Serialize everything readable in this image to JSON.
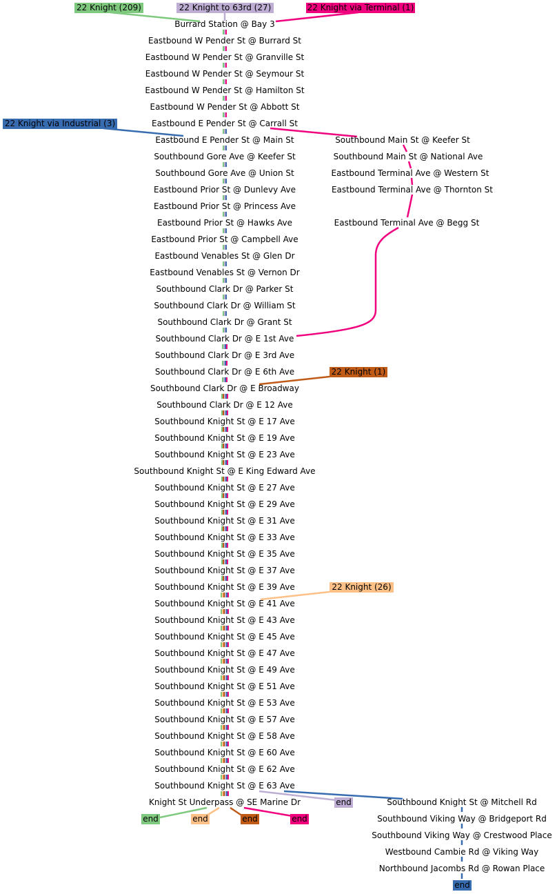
{
  "colors": {
    "green": "#7fc97f",
    "lavender": "#beaed4",
    "magenta": "#f0027f",
    "blue": "#386cb0",
    "brown": "#bf5b17",
    "peach": "#fdc086"
  },
  "route_labels": {
    "knight_209": "22 Knight (209)",
    "knight_63rd": "22 Knight to 63rd (27)",
    "knight_terminal": "22 Knight via Terminal (1)",
    "knight_industrial": "22 Knight via Industrial (3)",
    "knight_1": "22 Knight (1)",
    "knight_26": "22 Knight (26)"
  },
  "end_label": "end",
  "main_stops": [
    "Burrard Station @ Bay 3",
    "Eastbound W Pender St @ Burrard St",
    "Eastbound W Pender St @ Granville St",
    "Eastbound W Pender St @ Seymour St",
    "Eastbound W Pender St @ Hamilton St",
    "Eastbound W Pender St @ Abbott St",
    "Eastbound E Pender St @ Carrall St",
    "Eastbound E Pender St @ Main St",
    "Southbound Gore Ave @ Keefer St",
    "Southbound Gore Ave @ Union St",
    "Eastbound Prior St @ Dunlevy Ave",
    "Eastbound Prior St @ Princess Ave",
    "Eastbound Prior St @ Hawks Ave",
    "Eastbound Prior St @ Campbell Ave",
    "Eastbound Venables St @ Glen Dr",
    "Eastbound Venables St @ Vernon Dr",
    "Southbound Clark Dr @ Parker St",
    "Southbound Clark Dr @ William St",
    "Southbound Clark Dr @ Grant St",
    "Southbound Clark Dr @ E 1st Ave",
    "Southbound Clark Dr @ E 3rd Ave",
    "Southbound Clark Dr @ E 6th Ave",
    "Southbound Clark Dr @ E Broadway",
    "Southbound Clark Dr @ E 12 Ave",
    "Southbound Knight St @ E 17 Ave",
    "Southbound Knight St @ E 19 Ave",
    "Southbound Knight St @ E 23 Ave",
    "Southbound Knight St @ E King Edward Ave",
    "Southbound Knight St @ E 27 Ave",
    "Southbound Knight St @ E 29 Ave",
    "Southbound Knight St @ E 31 Ave",
    "Southbound Knight St @ E 33 Ave",
    "Southbound Knight St @ E 35 Ave",
    "Southbound Knight St @ E 37 Ave",
    "Southbound Knight St @ E 39 Ave",
    "Southbound Knight St @ E 41 Ave",
    "Southbound Knight St @ E 43 Ave",
    "Southbound Knight St @ E 45 Ave",
    "Southbound Knight St @ E 47 Ave",
    "Southbound Knight St @ E 49 Ave",
    "Southbound Knight St @ E 51 Ave",
    "Southbound Knight St @ E 53 Ave",
    "Southbound Knight St @ E 57 Ave",
    "Southbound Knight St @ E 58 Ave",
    "Southbound Knight St @ E 60 Ave",
    "Southbound Knight St @ E 62 Ave",
    "Southbound Knight St @ E 63 Ave",
    "Knight St Underpass @ SE Marine Dr"
  ],
  "terminal_stops": [
    "Southbound Main St @ Keefer St",
    "Southbound Main St @ National Ave",
    "Eastbound Terminal Ave @ Western St",
    "Eastbound Terminal Ave @ Thornton St",
    "Eastbound Terminal Ave @ Begg St"
  ],
  "industrial_stops": [
    "Southbound Knight St @ Mitchell Rd",
    "Southbound Viking Way @ Bridgeport Rd",
    "Southbound Viking Way @ Crestwood Place",
    "Westbound Cambie Rd @ Viking Way",
    "Northbound Jacombs Rd @ Rowan Place"
  ]
}
